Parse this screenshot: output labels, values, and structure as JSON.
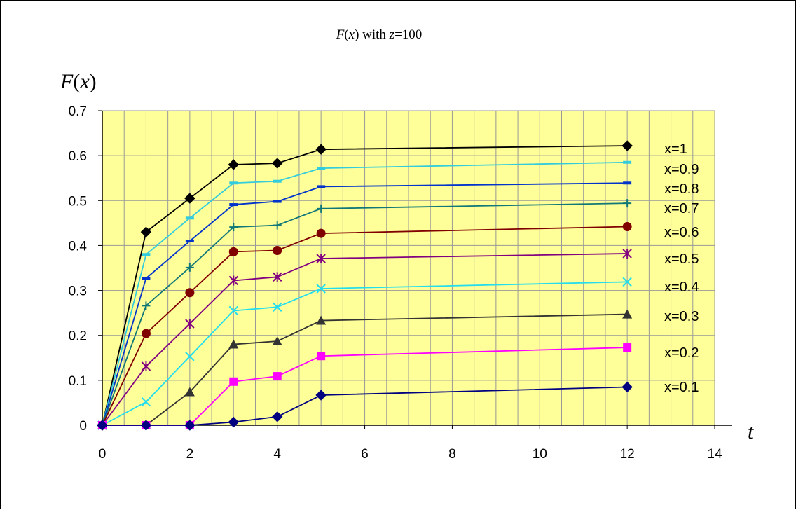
{
  "chart_data": {
    "type": "line",
    "title_parts": [
      "F",
      "(",
      "x",
      ") with ",
      "z",
      "=100"
    ],
    "ylabel_parts": [
      "F",
      "(",
      "x",
      ")"
    ],
    "xlabel": "t",
    "xlim": [
      0,
      14
    ],
    "ylim": [
      0,
      0.7
    ],
    "xticks": [
      "0",
      "2",
      "4",
      "6",
      "8",
      "10",
      "12",
      "14"
    ],
    "yticks": [
      "0",
      "0.1",
      "0.2",
      "0.3",
      "0.4",
      "0.5",
      "0.6",
      "0.7"
    ],
    "grid": true,
    "plot_background": "#ffff99",
    "legend": "inline-right",
    "x": [
      0,
      1,
      2,
      3,
      4,
      5,
      12
    ],
    "series": [
      {
        "name": "x=1",
        "color": "#000000",
        "marker": "diamond",
        "values": [
          0,
          0.43,
          0.505,
          0.58,
          0.583,
          0.614,
          0.622
        ]
      },
      {
        "name": "x=0.9",
        "color": "#33ccdd",
        "marker": "dash",
        "values": [
          0,
          0.38,
          0.461,
          0.539,
          0.543,
          0.572,
          0.585
        ]
      },
      {
        "name": "x=0.8",
        "color": "#0033cc",
        "marker": "dash",
        "values": [
          0,
          0.327,
          0.41,
          0.491,
          0.498,
          0.531,
          0.539
        ]
      },
      {
        "name": "x=0.7",
        "color": "#117777",
        "marker": "plus",
        "values": [
          0,
          0.266,
          0.351,
          0.441,
          0.445,
          0.482,
          0.494
        ]
      },
      {
        "name": "x=0.6",
        "color": "#800000",
        "marker": "circle",
        "values": [
          0,
          0.204,
          0.295,
          0.386,
          0.389,
          0.427,
          0.442
        ]
      },
      {
        "name": "x=0.5",
        "color": "#800080",
        "marker": "star",
        "values": [
          0,
          0.131,
          0.226,
          0.322,
          0.33,
          0.371,
          0.382
        ]
      },
      {
        "name": "x=0.4",
        "color": "#22ddee",
        "marker": "x",
        "values": [
          0,
          0.052,
          0.153,
          0.255,
          0.263,
          0.304,
          0.319
        ]
      },
      {
        "name": "x=0.3",
        "color": "#333333",
        "marker": "triangle",
        "values": [
          0,
          0,
          0.074,
          0.18,
          0.187,
          0.233,
          0.247
        ]
      },
      {
        "name": "x=0.2",
        "color": "#ff00ff",
        "marker": "square",
        "values": [
          0,
          0,
          0,
          0.097,
          0.109,
          0.154,
          0.173
        ]
      },
      {
        "name": "x=0.1",
        "color": "#000080",
        "marker": "diamond",
        "values": [
          0,
          0,
          0,
          0.007,
          0.019,
          0.067,
          0.085
        ]
      }
    ]
  }
}
